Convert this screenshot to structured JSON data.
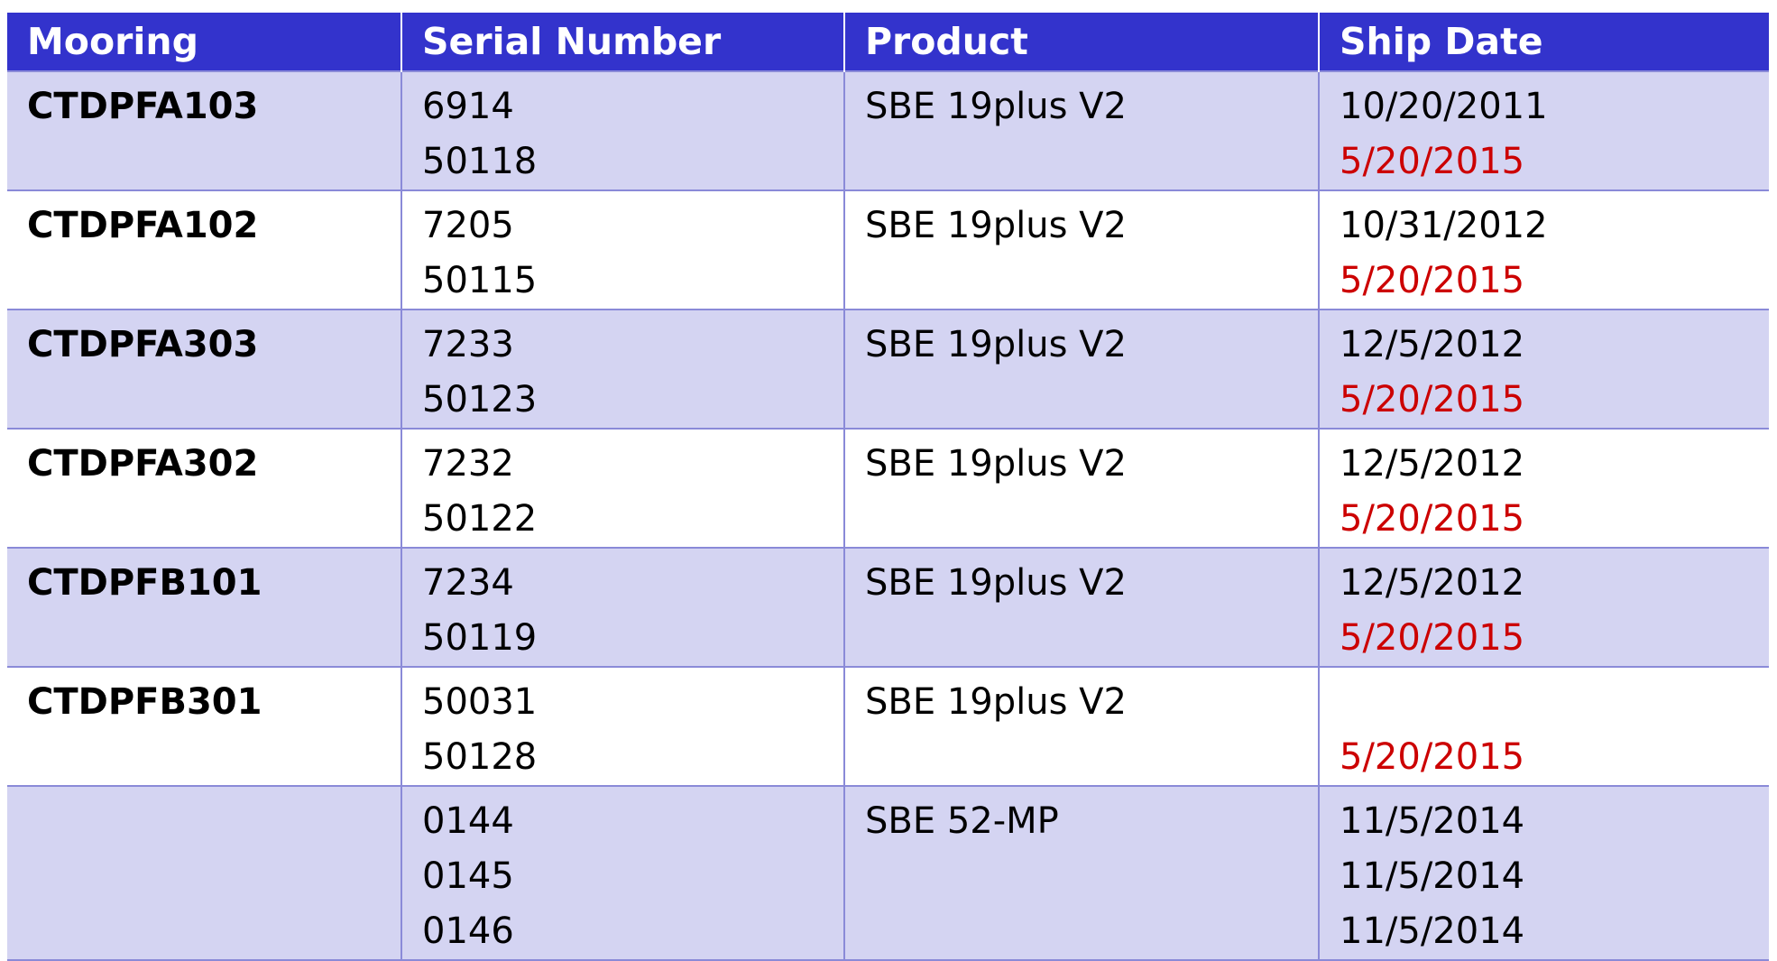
{
  "headers": {
    "mooring": "Mooring",
    "serial": "Serial Number",
    "product": "Product",
    "ship_date": "Ship Date"
  },
  "rows": [
    {
      "mooring": "CTDPFA103",
      "serials": [
        "6914",
        "50118"
      ],
      "product": "SBE 19plus V2",
      "dates": [
        "10/20/2011",
        "5/20/2015"
      ]
    },
    {
      "mooring": "CTDPFA102",
      "serials": [
        "7205",
        "50115"
      ],
      "product": "SBE 19plus V2",
      "dates": [
        "10/31/2012",
        "5/20/2015"
      ]
    },
    {
      "mooring": "CTDPFA303",
      "serials": [
        "7233",
        "50123"
      ],
      "product": "SBE 19plus V2",
      "dates": [
        "12/5/2012",
        "5/20/2015"
      ]
    },
    {
      "mooring": "CTDPFA302",
      "serials": [
        "7232",
        "50122"
      ],
      "product": "SBE 19plus V2",
      "dates": [
        "12/5/2012",
        "5/20/2015"
      ]
    },
    {
      "mooring": "CTDPFB101",
      "serials": [
        "7234",
        "50119"
      ],
      "product": "SBE 19plus V2",
      "dates": [
        "12/5/2012",
        "5/20/2015"
      ]
    },
    {
      "mooring": "CTDPFB301",
      "serials": [
        "50031",
        "50128"
      ],
      "product": "SBE 19plus V2",
      "dates": [
        "",
        "5/20/2015"
      ]
    },
    {
      "mooring": "",
      "serials": [
        "0144",
        "0145",
        "0146"
      ],
      "product": "SBE 52-MP",
      "dates": [
        "11/5/2014",
        "11/5/2014",
        "11/5/2014"
      ]
    }
  ],
  "colors": {
    "header_bg": "#3333cc",
    "row_alt_bg": "#d4d4f2",
    "highlight_date": "#cc0000"
  }
}
